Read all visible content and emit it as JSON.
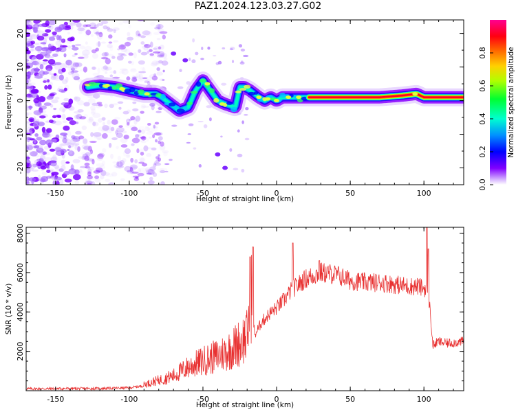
{
  "title": "PAZ1.2024.123.03.27.G02",
  "chart_data": [
    {
      "type": "heatmap",
      "name": "spectrogram",
      "xlabel": "Height of straight line (km)",
      "ylabel": "Frequency (Hz)",
      "xlim": [
        -170,
        127
      ],
      "ylim": [
        -25,
        24
      ],
      "xticks": [
        -150,
        -100,
        -50,
        0,
        50,
        100
      ],
      "yticks": [
        -20,
        -10,
        0,
        10,
        20
      ],
      "colorbar": {
        "label": "Normalized spectral amplitude",
        "range": [
          0,
          1
        ],
        "ticks": [
          "0.0",
          "0.2",
          "0.4",
          "0.6",
          "0.8"
        ],
        "colormap": [
          "#ffffff",
          "#8000ff",
          "#0000ff",
          "#00b0ff",
          "#00ffaa",
          "#40ff00",
          "#e0ff00",
          "#ffa000",
          "#ff0000",
          "#ff0080"
        ]
      },
      "ridge": {
        "x": [
          -128,
          -120,
          -110,
          -100,
          -90,
          -82,
          -78,
          -72,
          -66,
          -60,
          -55,
          -50,
          -45,
          -40,
          -35,
          -28,
          -25,
          -22,
          -18,
          -12,
          -8,
          -4,
          0,
          4,
          8,
          14,
          20,
          30,
          50,
          70,
          85,
          95,
          100,
          104,
          110,
          127
        ],
        "y": [
          4,
          4.5,
          4,
          3,
          2,
          2,
          1,
          -1,
          -3,
          -2,
          3,
          6,
          3,
          0,
          -1,
          -2,
          4,
          4,
          3,
          1,
          0,
          1,
          0,
          1,
          1,
          1,
          1,
          1,
          1,
          1,
          1.5,
          2,
          1,
          1,
          1,
          1
        ]
      }
    },
    {
      "type": "line",
      "name": "snr",
      "xlabel": "Height of straight line (km)",
      "ylabel": "SNR (10 * v/v)",
      "xlim": [
        -170,
        127
      ],
      "ylim": [
        0,
        8300
      ],
      "xticks": [
        -150,
        -100,
        -50,
        0,
        50,
        100
      ],
      "yticks": [
        2000,
        4000,
        6000,
        8000
      ],
      "color": "#e83030",
      "envelope": {
        "x": [
          -170,
          -120,
          -100,
          -90,
          -80,
          -70,
          -60,
          -50,
          -40,
          -30,
          -20,
          -17,
          -15,
          -10,
          -5,
          0,
          5,
          10,
          20,
          30,
          40,
          50,
          60,
          70,
          80,
          90,
          96,
          100,
          102,
          104,
          106,
          110,
          115,
          127
        ],
        "y": [
          100,
          110,
          150,
          250,
          420,
          600,
          950,
          1200,
          1400,
          1700,
          2200,
          4000,
          2800,
          3500,
          3900,
          4200,
          4600,
          5100,
          5700,
          6000,
          5900,
          5600,
          5500,
          5500,
          5400,
          5300,
          5300,
          5200,
          5200,
          4300,
          2300,
          2500,
          2400,
          2500
        ]
      },
      "peaks": [
        {
          "x": -18,
          "y": 6800
        },
        {
          "x": -16,
          "y": 7300
        },
        {
          "x": 11,
          "y": 7500
        },
        {
          "x": 29,
          "y": 6600
        },
        {
          "x": 102,
          "y": 8300
        },
        {
          "x": 103,
          "y": 7200
        }
      ]
    }
  ]
}
